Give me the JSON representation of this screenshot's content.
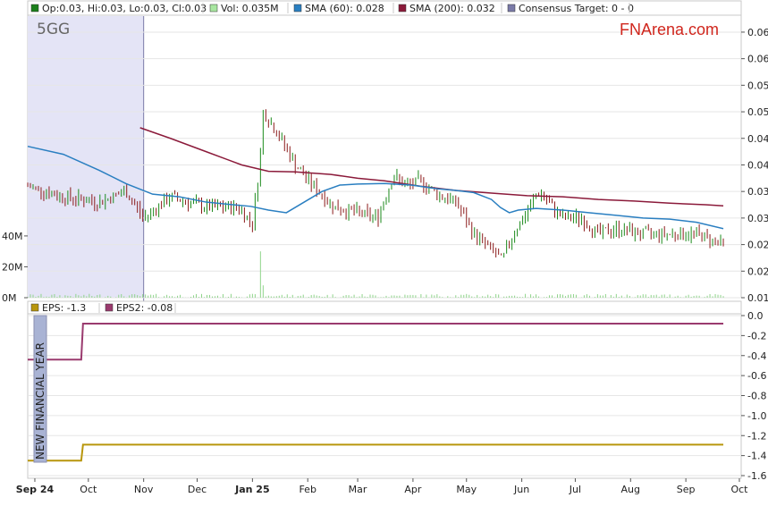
{
  "ticker": "5GG",
  "brand": "FNArena.com",
  "annotation": "NEW FINANCIAL YEAR",
  "legend_top": [
    {
      "label": "Op:0.03, Hi:0.03, Lo:0.03, Cl:0.03",
      "color": "#1b7f1b"
    },
    {
      "label": "Vol: 0.035M",
      "color": "#a8e6a0"
    },
    {
      "label": "SMA (60): 0.028",
      "color": "#2a7fc1"
    },
    {
      "label": "SMA (200): 0.032",
      "color": "#8b1a3a"
    },
    {
      "label": "Consensus Target: 0 - 0",
      "color": "#7a7aa8"
    }
  ],
  "legend_bottom": [
    {
      "label": "EPS: -1.3",
      "color": "#b8960c"
    },
    {
      "label": "EPS2: -0.08",
      "color": "#9a3a6e"
    }
  ],
  "colors": {
    "up": "#1b8a1b",
    "down": "#8b1a1a",
    "sma60": "#2a7fc1",
    "sma200": "#8b1a3a",
    "eps": "#b8960c",
    "eps2": "#9a3a6e",
    "volume": "#8fd48a",
    "shade": "#e4e4f6"
  },
  "chart_data": [
    {
      "type": "line",
      "title": "",
      "x_ticks": [
        "Sep 24",
        "Oct",
        "Nov",
        "Dec",
        "Jan 25",
        "Feb",
        "Mar",
        "Apr",
        "May",
        "Jun",
        "Jul",
        "Aug",
        "Sep",
        "Oct"
      ],
      "x_ticks_bold": [
        "Sep 24",
        "Jan 25"
      ],
      "x_range_days": [
        0,
        395
      ],
      "x_tick_days": [
        4,
        34,
        65,
        95,
        126,
        157,
        185,
        216,
        246,
        277,
        307,
        338,
        369,
        399
      ],
      "ylim": [
        0.015,
        0.066
      ],
      "y_ticks": [
        "0.065",
        "0.060",
        "0.055",
        "0.050",
        "0.045",
        "0.040",
        "0.035",
        "0.030",
        "0.025",
        "0.020",
        "0.015"
      ],
      "y_tick_values": [
        0.065,
        0.06,
        0.055,
        0.05,
        0.045,
        0.04,
        0.035,
        0.03,
        0.025,
        0.02,
        0.015
      ],
      "volume_ticks": [
        "40M",
        "20M",
        "0M"
      ],
      "volume_tick_values": [
        40,
        20,
        0
      ],
      "volume_range": [
        0,
        55
      ],
      "price_highlight_region_days": [
        0,
        65
      ],
      "sma60": {
        "x": [
          0,
          20,
          40,
          55,
          70,
          85,
          100,
          115,
          125,
          135,
          145,
          155,
          165,
          175,
          185,
          200,
          215,
          230,
          240,
          250,
          260,
          265,
          270,
          275,
          285,
          300,
          315,
          330,
          345,
          360,
          375,
          390
        ],
        "y": [
          0.0435,
          0.042,
          0.039,
          0.0365,
          0.0345,
          0.034,
          0.033,
          0.0325,
          0.0322,
          0.0315,
          0.031,
          0.033,
          0.035,
          0.0362,
          0.0364,
          0.0365,
          0.0362,
          0.0355,
          0.0352,
          0.0348,
          0.0335,
          0.032,
          0.031,
          0.0315,
          0.0318,
          0.0315,
          0.031,
          0.0305,
          0.03,
          0.0298,
          0.0292,
          0.028
        ]
      },
      "sma200": {
        "x": [
          63,
          80,
          100,
          120,
          135,
          150,
          170,
          185,
          200,
          220,
          240,
          260,
          280,
          300,
          320,
          340,
          360,
          380,
          390
        ],
        "y": [
          0.047,
          0.045,
          0.0425,
          0.04,
          0.0388,
          0.0387,
          0.0382,
          0.0375,
          0.037,
          0.036,
          0.0352,
          0.0347,
          0.0342,
          0.034,
          0.0335,
          0.0332,
          0.0328,
          0.0325,
          0.0323
        ]
      }
    },
    {
      "type": "line",
      "title": "",
      "ylim": [
        -1.6,
        0.0
      ],
      "y_ticks": [
        "0.0",
        "-0.2",
        "-0.4",
        "-0.6",
        "-0.8",
        "-1.0",
        "-1.2",
        "-1.4",
        "-1.6"
      ],
      "y_tick_values": [
        0.0,
        -0.2,
        -0.4,
        -0.6,
        -0.8,
        -1.0,
        -1.2,
        -1.4,
        -1.6
      ],
      "series": [
        {
          "name": "EPS",
          "x": [
            0,
            30,
            31,
            390
          ],
          "y": [
            -1.45,
            -1.45,
            -1.29,
            -1.29
          ]
        },
        {
          "name": "EPS2",
          "x": [
            0,
            30,
            31,
            390
          ],
          "y": [
            -0.44,
            -0.44,
            -0.08,
            -0.08
          ]
        }
      ]
    }
  ]
}
